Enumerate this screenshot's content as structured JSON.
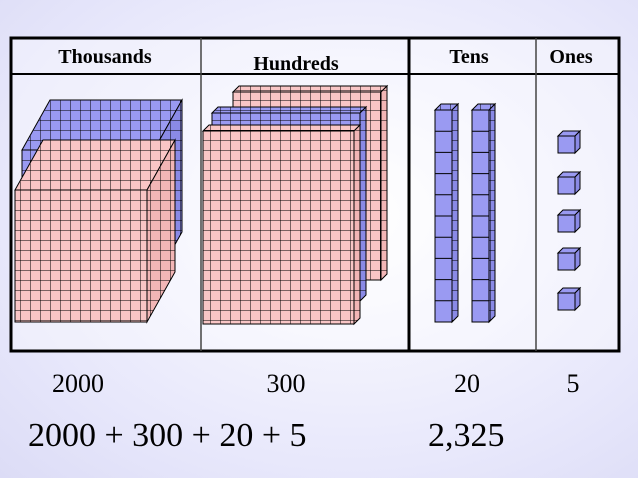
{
  "diagram": {
    "columns": [
      {
        "id": "thousands",
        "label": "Thousands",
        "value": "2000",
        "blocks": 2,
        "block_type": "cube"
      },
      {
        "id": "hundreds",
        "label": "Hundreds",
        "value": "300",
        "blocks": 3,
        "block_type": "flat"
      },
      {
        "id": "tens",
        "label": "Tens",
        "value": "20",
        "blocks": 2,
        "block_type": "rod"
      },
      {
        "id": "ones",
        "label": "Ones",
        "value": "5",
        "blocks": 5,
        "block_type": "unit"
      }
    ],
    "expression": "2000 + 300 + 20 + 5",
    "total": "2,325",
    "colors": {
      "pink": "#f9c6c6",
      "blue": "#9a9af2",
      "grid_line": "#000000",
      "panel_bg": "#ffffff"
    }
  }
}
